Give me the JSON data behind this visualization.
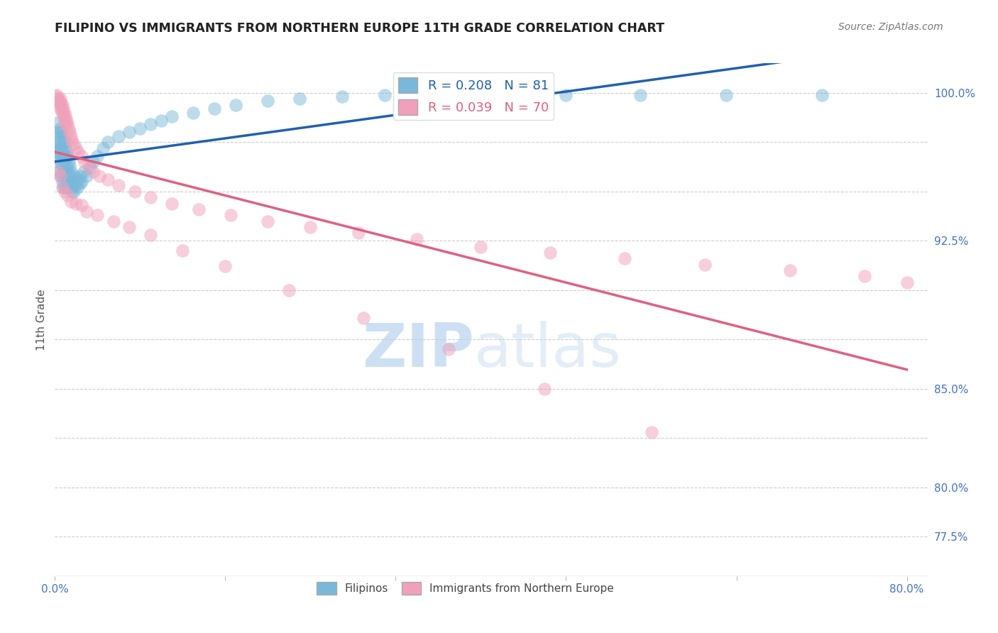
{
  "title": "FILIPINO VS IMMIGRANTS FROM NORTHERN EUROPE 11TH GRADE CORRELATION CHART",
  "source": "Source: ZipAtlas.com",
  "ylabel": "11th Grade",
  "ymin": 0.755,
  "ymax": 1.015,
  "xmin": 0.0,
  "xmax": 0.82,
  "R_blue": 0.208,
  "N_blue": 81,
  "R_pink": 0.039,
  "N_pink": 70,
  "legend_label_blue": "Filipinos",
  "legend_label_pink": "Immigrants from Northern Europe",
  "blue_color": "#7ab8d9",
  "pink_color": "#f0a0ba",
  "blue_line_color": "#2060b0",
  "pink_line_color": "#e06080",
  "blue_scatter_x": [
    0.001,
    0.002,
    0.002,
    0.003,
    0.003,
    0.003,
    0.004,
    0.004,
    0.004,
    0.005,
    0.005,
    0.005,
    0.005,
    0.006,
    0.006,
    0.006,
    0.007,
    0.007,
    0.007,
    0.007,
    0.008,
    0.008,
    0.008,
    0.008,
    0.009,
    0.009,
    0.009,
    0.01,
    0.01,
    0.01,
    0.01,
    0.011,
    0.011,
    0.011,
    0.012,
    0.012,
    0.012,
    0.013,
    0.013,
    0.014,
    0.014,
    0.015,
    0.015,
    0.016,
    0.016,
    0.017,
    0.018,
    0.018,
    0.019,
    0.02,
    0.021,
    0.022,
    0.023,
    0.024,
    0.025,
    0.027,
    0.03,
    0.033,
    0.036,
    0.04,
    0.045,
    0.05,
    0.06,
    0.07,
    0.08,
    0.09,
    0.1,
    0.11,
    0.13,
    0.15,
    0.17,
    0.2,
    0.23,
    0.27,
    0.31,
    0.36,
    0.42,
    0.48,
    0.55,
    0.63,
    0.72
  ],
  "blue_scatter_y": [
    0.975,
    0.985,
    0.97,
    0.98,
    0.972,
    0.965,
    0.978,
    0.97,
    0.96,
    0.982,
    0.975,
    0.968,
    0.958,
    0.98,
    0.972,
    0.965,
    0.978,
    0.97,
    0.963,
    0.955,
    0.975,
    0.968,
    0.96,
    0.952,
    0.972,
    0.965,
    0.957,
    0.975,
    0.968,
    0.96,
    0.952,
    0.97,
    0.963,
    0.955,
    0.968,
    0.96,
    0.952,
    0.965,
    0.957,
    0.963,
    0.955,
    0.96,
    0.952,
    0.957,
    0.95,
    0.955,
    0.958,
    0.95,
    0.953,
    0.955,
    0.952,
    0.956,
    0.954,
    0.958,
    0.955,
    0.96,
    0.958,
    0.962,
    0.965,
    0.968,
    0.972,
    0.975,
    0.978,
    0.98,
    0.982,
    0.984,
    0.986,
    0.988,
    0.99,
    0.992,
    0.994,
    0.996,
    0.997,
    0.998,
    0.999,
    0.999,
    0.999,
    0.999,
    0.999,
    0.999,
    0.999
  ],
  "pink_scatter_x": [
    0.001,
    0.002,
    0.003,
    0.003,
    0.004,
    0.004,
    0.005,
    0.005,
    0.006,
    0.006,
    0.007,
    0.007,
    0.008,
    0.008,
    0.009,
    0.009,
    0.01,
    0.01,
    0.011,
    0.012,
    0.013,
    0.014,
    0.015,
    0.016,
    0.018,
    0.02,
    0.022,
    0.025,
    0.028,
    0.032,
    0.036,
    0.042,
    0.05,
    0.06,
    0.075,
    0.09,
    0.11,
    0.135,
    0.165,
    0.2,
    0.24,
    0.285,
    0.34,
    0.4,
    0.465,
    0.535,
    0.61,
    0.69,
    0.76,
    0.8,
    0.003,
    0.005,
    0.007,
    0.009,
    0.012,
    0.015,
    0.02,
    0.025,
    0.03,
    0.04,
    0.055,
    0.07,
    0.09,
    0.12,
    0.16,
    0.22,
    0.29,
    0.37,
    0.46,
    0.56
  ],
  "pink_scatter_y": [
    0.998,
    0.999,
    0.997,
    0.995,
    0.996,
    0.993,
    0.997,
    0.994,
    0.995,
    0.991,
    0.994,
    0.99,
    0.992,
    0.988,
    0.99,
    0.986,
    0.988,
    0.984,
    0.986,
    0.984,
    0.982,
    0.98,
    0.978,
    0.976,
    0.974,
    0.972,
    0.97,
    0.968,
    0.965,
    0.963,
    0.96,
    0.958,
    0.956,
    0.953,
    0.95,
    0.947,
    0.944,
    0.941,
    0.938,
    0.935,
    0.932,
    0.929,
    0.926,
    0.922,
    0.919,
    0.916,
    0.913,
    0.91,
    0.907,
    0.904,
    0.96,
    0.958,
    0.952,
    0.95,
    0.948,
    0.945,
    0.944,
    0.943,
    0.94,
    0.938,
    0.935,
    0.932,
    0.928,
    0.92,
    0.912,
    0.9,
    0.886,
    0.87,
    0.85,
    0.828
  ],
  "watermark_zip": "ZIP",
  "watermark_atlas": "atlas",
  "background_color": "#ffffff",
  "grid_color": "#cccccc",
  "ytick_positions": [
    0.775,
    0.8,
    0.825,
    0.85,
    0.875,
    0.9,
    0.925,
    0.95,
    0.975,
    1.0
  ],
  "ytick_labels": [
    "77.5%",
    "80.0%",
    "",
    "85.0%",
    "",
    "",
    "92.5%",
    "",
    "",
    "100.0%"
  ],
  "xtick_positions": [
    0.0,
    0.16,
    0.32,
    0.48,
    0.64,
    0.8
  ],
  "xtick_labels": [
    "0.0%",
    "",
    "",
    "",
    "",
    "80.0%"
  ]
}
